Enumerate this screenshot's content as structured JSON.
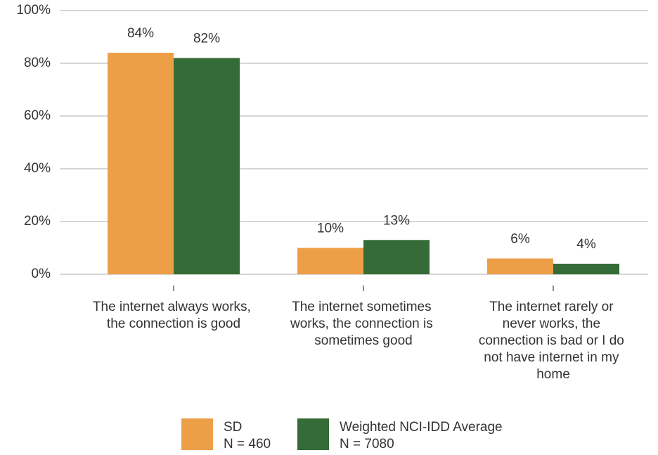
{
  "chart_data": {
    "type": "bar",
    "categories": [
      "The internet always works, the connection is good",
      "The internet sometimes works, the connection is sometimes good",
      "The internet rarely or never works, the connection is bad or I do not have internet in my home"
    ],
    "series": [
      {
        "name": "SD\nN = 460",
        "color": "#ed9f48",
        "values": [
          84,
          10,
          6
        ],
        "value_labels": [
          "84%",
          "10%",
          "6%"
        ]
      },
      {
        "name": "Weighted NCI-IDD Average\nN = 7080",
        "color": "#346b37",
        "values": [
          82,
          13,
          4
        ],
        "value_labels": [
          "82%",
          "13%",
          "4%"
        ]
      }
    ],
    "ylim": [
      0,
      100
    ],
    "yticks": [
      {
        "value": 0,
        "label": "0%"
      },
      {
        "value": 20,
        "label": "20%"
      },
      {
        "value": 40,
        "label": "40%"
      },
      {
        "value": 60,
        "label": "60%"
      },
      {
        "value": 80,
        "label": "80%"
      },
      {
        "value": 100,
        "label": "100%"
      }
    ],
    "grid": true,
    "legend": "bottom"
  }
}
